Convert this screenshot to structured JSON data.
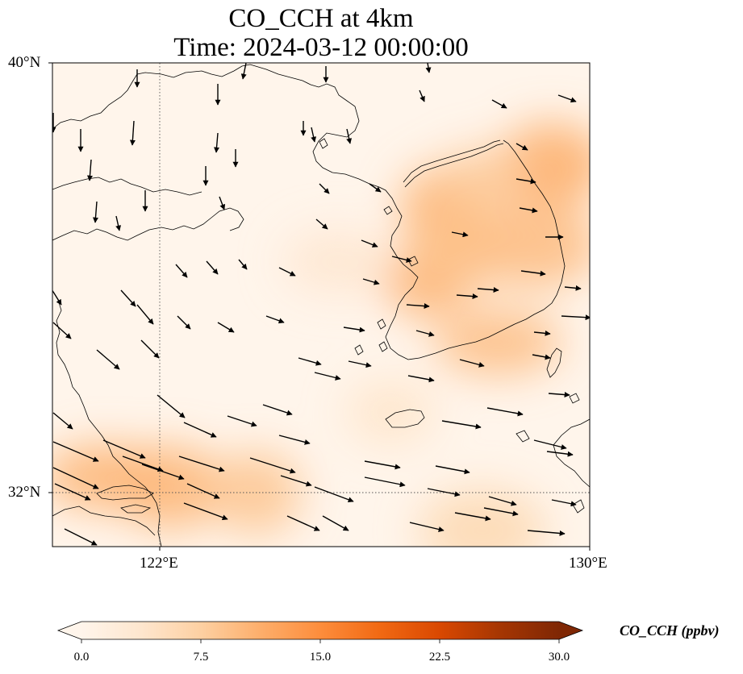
{
  "title_line1": "CO_CCH at 4km",
  "title_line2": "Time: 2024-03-12 00:00:00",
  "map": {
    "lat_labels": [
      "40°N",
      "32°N"
    ],
    "lon_labels": [
      "122°E",
      "130°E"
    ],
    "extent": {
      "lon_min": 120,
      "lon_max": 130,
      "lat_min": 31,
      "lat_max": 40
    },
    "gridlines": {
      "lons": [
        122
      ],
      "lats": [
        32
      ],
      "style": "dotted"
    }
  },
  "colorbar": {
    "label": "CO_CCH (ppbv)",
    "ticks": [
      "0.0",
      "7.5",
      "15.0",
      "22.5",
      "30.0"
    ],
    "min": 0,
    "max": 30,
    "extend": "both",
    "colors": [
      "#fff5eb",
      "#fee6ce",
      "#fdd0a2",
      "#fdae6b",
      "#fd8d3c",
      "#f16913",
      "#d94801",
      "#a63603",
      "#7f2704"
    ]
  },
  "field_hotspots": [
    {
      "lon": 127.0,
      "lat": 35.9,
      "value": 11.0
    },
    {
      "lon": 129.3,
      "lat": 38.1,
      "value": 11.0
    },
    {
      "lon": 128.3,
      "lat": 34.8,
      "value": 9.5
    },
    {
      "lon": 127.3,
      "lat": 37.3,
      "value": 10.5
    },
    {
      "lon": 127.5,
      "lat": 36.4,
      "value": 9.0
    },
    {
      "lon": 129.0,
      "lat": 36.6,
      "value": 9.5
    },
    {
      "lon": 128.0,
      "lat": 37.8,
      "value": 8.0
    },
    {
      "lon": 122.2,
      "lat": 32.1,
      "value": 10.0
    },
    {
      "lon": 121.0,
      "lat": 32.3,
      "value": 10.5
    },
    {
      "lon": 123.8,
      "lat": 32.0,
      "value": 8.5
    },
    {
      "lon": 125.3,
      "lat": 36.3,
      "value": 3.5
    },
    {
      "lon": 128.0,
      "lat": 31.3,
      "value": 6.0
    },
    {
      "lon": 126.3,
      "lat": 33.5,
      "value": 4.0
    }
  ]
}
